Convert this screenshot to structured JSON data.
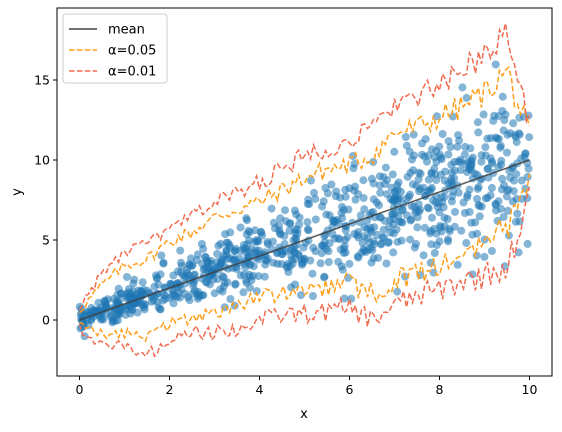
{
  "chart_data": {
    "type": "scatter",
    "title": "",
    "xlabel": "x",
    "ylabel": "y",
    "xlim": [
      -0.5,
      10.5
    ],
    "ylim": [
      -3.5,
      19.5
    ],
    "xticks": [
      0,
      2,
      4,
      6,
      8,
      10
    ],
    "yticks": [
      0,
      5,
      10,
      15
    ],
    "xtick_labels": [
      "0",
      "2",
      "4",
      "6",
      "8",
      "10"
    ],
    "ytick_labels": [
      "0",
      "5",
      "10",
      "15"
    ],
    "grid": false,
    "legend_position": "top-left",
    "series": [
      {
        "name": "mean",
        "kind": "line",
        "style": "solid",
        "color": "#404040",
        "x": [
          0,
          10
        ],
        "y": [
          0,
          10
        ]
      },
      {
        "name": "α=0.05",
        "kind": "band",
        "style": "dashed",
        "color": "#ff9f1c",
        "x": [
          0,
          0.5,
          1,
          1.5,
          2,
          2.5,
          3,
          3.5,
          4,
          4.5,
          5,
          5.5,
          6,
          6.5,
          7,
          7.5,
          8,
          8.5,
          9,
          9.5,
          10
        ],
        "upper": [
          0.6,
          2.2,
          3.4,
          3.8,
          4.9,
          5.5,
          6.4,
          6.9,
          7.4,
          8.1,
          8.9,
          9.4,
          9.7,
          10.3,
          11.7,
          12.0,
          12.7,
          13.3,
          14.2,
          15.6,
          11.3
        ],
        "lower": [
          -0.4,
          -0.9,
          -0.8,
          -1.0,
          -0.3,
          0.2,
          0.6,
          0.8,
          1.4,
          1.7,
          1.9,
          2.0,
          2.3,
          1.6,
          2.4,
          3.0,
          3.3,
          4.0,
          4.9,
          5.8,
          8.8
        ]
      },
      {
        "name": "α=0.01",
        "kind": "band",
        "style": "dashed",
        "color": "#f26c4f",
        "x": [
          0,
          0.5,
          1,
          1.5,
          2,
          2.5,
          3,
          3.5,
          4,
          4.5,
          5,
          5.5,
          6,
          6.5,
          7,
          7.5,
          8,
          8.5,
          9,
          9.5,
          10
        ],
        "upper": [
          0.8,
          2.9,
          4.2,
          4.8,
          5.6,
          6.5,
          7.4,
          7.9,
          8.6,
          9.4,
          10.3,
          10.8,
          11.2,
          11.9,
          13.6,
          13.9,
          14.6,
          15.4,
          16.8,
          18.0,
          12.4
        ],
        "lower": [
          -0.5,
          -1.6,
          -1.6,
          -2.2,
          -1.3,
          -0.8,
          -0.8,
          -0.6,
          0.0,
          0.3,
          0.4,
          0.5,
          0.8,
          0.0,
          0.9,
          1.5,
          1.9,
          2.4,
          2.8,
          3.3,
          7.6
        ]
      },
      {
        "name": "",
        "kind": "scatter",
        "color": "#1f77b4",
        "points_count": 900,
        "trend_slope": 1.0,
        "trend_intercept": 0.0
      }
    ]
  }
}
